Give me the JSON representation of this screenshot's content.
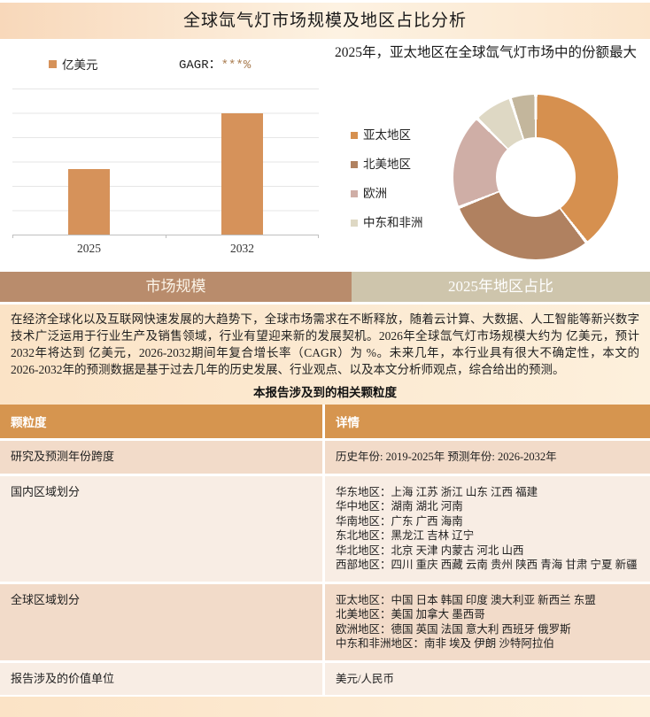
{
  "header": {
    "title": "全球氙气灯市场规模及地区占比分析"
  },
  "tabs": [
    {
      "label": "市场规模",
      "active": true
    },
    {
      "label": "2025年地区占比",
      "active": false
    }
  ],
  "chart_data": [
    {
      "type": "bar",
      "series_name": "亿美元",
      "annotation_label": "GAGR：",
      "annotation_value": "***%",
      "categories": [
        "2025",
        "2032"
      ],
      "values": [
        45,
        83
      ],
      "ylim": [
        0,
        100
      ],
      "ylabel": "",
      "xlabel": "",
      "grid": true,
      "legend_position": "top-left",
      "note_values_masked": true
    },
    {
      "type": "pie",
      "donut": true,
      "title": "2025年，亚太地区在全球氙气灯市场中的份额最大",
      "segments": [
        {
          "name": "亚太地区",
          "value": 39.5,
          "color": "#D6904F"
        },
        {
          "name": "北美地区",
          "value": 29.5,
          "color": "#B08160"
        },
        {
          "name": "欧洲",
          "value": 18.5,
          "color": "#CFAEA6"
        },
        {
          "name": "中东和非洲",
          "value": 7.5,
          "color": "#DED8C4"
        },
        {
          "name": "",
          "value": 5.0,
          "color": "#C3B69C"
        }
      ],
      "legend_position": "left"
    }
  ],
  "intro_paragraph": "在经济全球化以及互联网快速发展的大趋势下，全球市场需求在不断释放，随着云计算、大数据、人工智能等新兴数字技术广泛运用于行业生产及销售领域，行业有望迎来新的发展契机。2026年全球氙气灯市场规模大约为 亿美元，预计2032年将达到 亿美元，2026-2032期间年复合增长率（CAGR）为 %。未来几年，本行业具有很大不确定性，本文的2026-2032年的预测数据是基于过去几年的历史发展、行业观点、以及本文分析师观点，综合给出的预测。",
  "table": {
    "title": "本报告涉及到的相关颗粒度",
    "headers": [
      "颗粒度",
      "详情"
    ],
    "rows": [
      {
        "name": "研究及预测年份跨度",
        "detail": [
          "历史年份: 2019-2025年  预测年份: 2026-2032年"
        ]
      },
      {
        "name": "国内区域划分",
        "detail": [
          "华东地区：上海  江苏  浙江  山东  江西  福建",
          "华中地区：湖南  湖北  河南",
          "华南地区：广东  广西  海南",
          "东北地区：黑龙江  吉林  辽宁",
          "华北地区：北京  天津  内蒙古  河北  山西",
          "西部地区：四川  重庆  西藏  云南  贵州  陕西  青海  甘肃  宁夏  新疆"
        ]
      },
      {
        "name": "全球区域划分",
        "detail": [
          "亚太地区：中国  日本  韩国  印度  澳大利亚  新西兰  东盟",
          "北美地区：美国  加拿大  墨西哥",
          "欧洲地区：德国  英国  法国  意大利  西班牙  俄罗斯",
          "中东和非洲地区：南非  埃及  伊朗  沙特阿拉伯"
        ]
      },
      {
        "name": "报告涉及的价值单位",
        "detail": [
          "美元/人民币"
        ]
      }
    ]
  },
  "colors": {
    "bar": "#D6925A",
    "cagr_value": "#A97C50",
    "tab_active_bg": "#B98C6C",
    "tab_inactive_bg": "#CEC5AC",
    "table_header_bg": "#D6954F",
    "row_odd_bg": "#F2DBC9",
    "row_even_bg": "#F8EDE4",
    "header_band_gradient": [
      "#F8D8BA",
      "#FDF2E2",
      "#FBE5CB"
    ]
  }
}
